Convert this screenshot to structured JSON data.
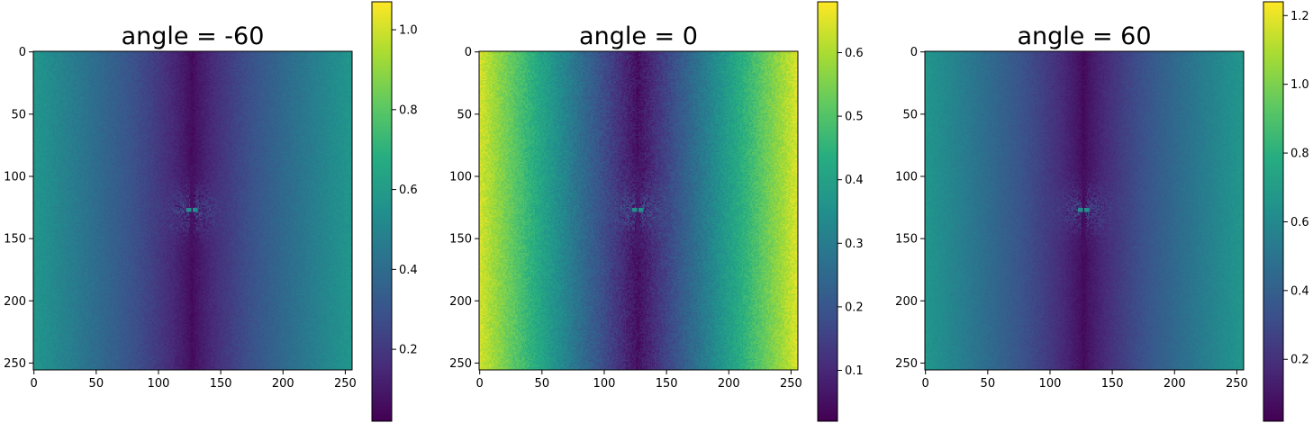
{
  "chart_data": [
    {
      "type": "heatmap",
      "title": "angle = -60",
      "xlabel": "",
      "ylabel": "",
      "xlim": [
        0,
        255
      ],
      "ylim": [
        255,
        0
      ],
      "xticks": [
        0,
        50,
        100,
        150,
        200,
        250
      ],
      "yticks": [
        0,
        50,
        100,
        150,
        200,
        250
      ],
      "colorbar": {
        "min": 0.02,
        "max": 1.07,
        "ticks": [
          0.2,
          0.4,
          0.6,
          0.8,
          1.0
        ],
        "tick_labels": [
          "0.2",
          "0.4",
          "0.6",
          "0.8",
          "1.0"
        ]
      },
      "pattern": {
        "center": [
          127,
          127
        ],
        "edge_value": 0.57,
        "min_value": 0.05,
        "falloff_exponent": 0.8,
        "noise": 0.025
      },
      "colormap": "viridis"
    },
    {
      "type": "heatmap",
      "title": "angle = 0",
      "xlabel": "",
      "ylabel": "",
      "xlim": [
        0,
        255
      ],
      "ylim": [
        255,
        0
      ],
      "xticks": [
        0,
        50,
        100,
        150,
        200,
        250
      ],
      "yticks": [
        0,
        50,
        100,
        150,
        200,
        250
      ],
      "colorbar": {
        "min": 0.02,
        "max": 0.68,
        "ticks": [
          0.1,
          0.2,
          0.3,
          0.4,
          0.5,
          0.6
        ],
        "tick_labels": [
          "0.1",
          "0.2",
          "0.3",
          "0.4",
          "0.5",
          "0.6"
        ]
      },
      "pattern": {
        "center": [
          127,
          127
        ],
        "edge_value": 0.64,
        "min_value": 0.05,
        "falloff_exponent": 1.0,
        "noise": 0.03
      },
      "colormap": "viridis"
    },
    {
      "type": "heatmap",
      "title": "angle = 60",
      "xlabel": "",
      "ylabel": "",
      "xlim": [
        0,
        255
      ],
      "ylim": [
        255,
        0
      ],
      "xticks": [
        0,
        50,
        100,
        150,
        200,
        250
      ],
      "yticks": [
        0,
        50,
        100,
        150,
        200,
        250
      ],
      "colorbar": {
        "min": 0.02,
        "max": 1.24,
        "ticks": [
          0.2,
          0.4,
          0.6,
          0.8,
          1.0,
          1.2
        ],
        "tick_labels": [
          "0.2",
          "0.4",
          "0.6",
          "0.8",
          "1.0",
          "1.2"
        ]
      },
      "pattern": {
        "center": [
          127,
          127
        ],
        "edge_value": 0.66,
        "min_value": 0.05,
        "falloff_exponent": 0.8,
        "noise": 0.025
      },
      "colormap": "viridis"
    }
  ]
}
